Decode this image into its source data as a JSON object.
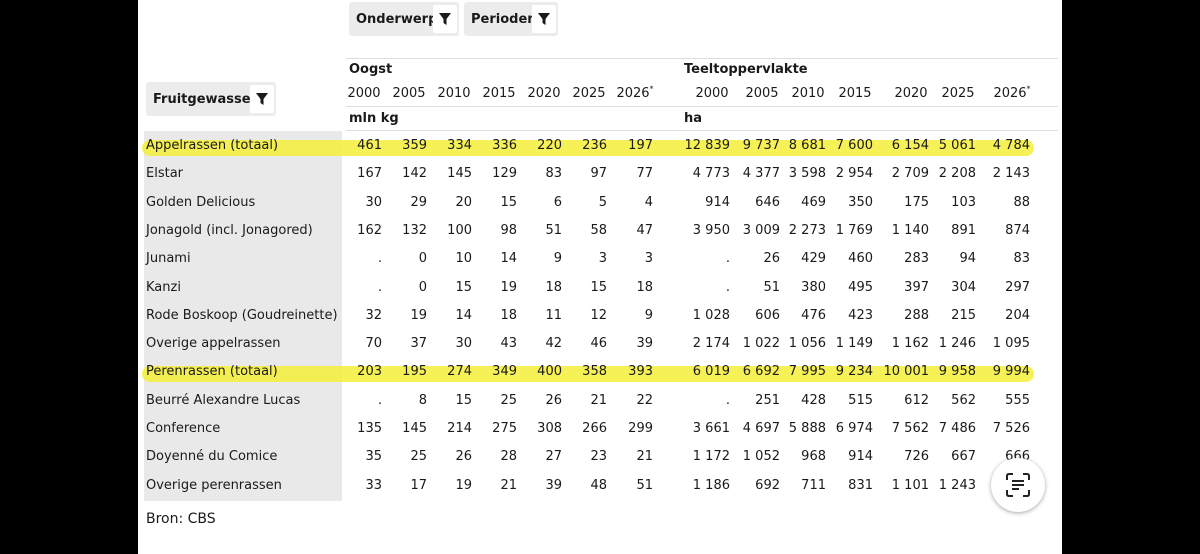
{
  "filters": {
    "onderwerp": "Onderwerp",
    "perioden": "Perioden",
    "fruitgewassen": "Fruitgewassen"
  },
  "groups": {
    "oogst": {
      "title": "Oogst",
      "unit": "mln kg"
    },
    "teelt": {
      "title": "Teeltoppervlakte",
      "unit": "ha"
    }
  },
  "years": [
    "2000",
    "2005",
    "2010",
    "2015",
    "2020",
    "2025",
    "2026"
  ],
  "year_mark": "*",
  "rows": [
    {
      "label": "Appelrassen (totaal)",
      "highlight": true,
      "oogst": [
        "461",
        "359",
        "334",
        "336",
        "220",
        "236",
        "197"
      ],
      "teelt": [
        "12 839",
        "9 737",
        "8 681",
        "7 600",
        "6 154",
        "5 061",
        "4 784"
      ]
    },
    {
      "label": "Elstar",
      "highlight": false,
      "oogst": [
        "167",
        "142",
        "145",
        "129",
        "83",
        "97",
        "77"
      ],
      "teelt": [
        "4 773",
        "4 377",
        "3 598",
        "2 954",
        "2 709",
        "2 208",
        "2 143"
      ]
    },
    {
      "label": "Golden Delicious",
      "highlight": false,
      "oogst": [
        "30",
        "29",
        "20",
        "15",
        "6",
        "5",
        "4"
      ],
      "teelt": [
        "914",
        "646",
        "469",
        "350",
        "175",
        "103",
        "88"
      ]
    },
    {
      "label": "Jonagold (incl. Jonagored)",
      "highlight": false,
      "oogst": [
        "162",
        "132",
        "100",
        "98",
        "51",
        "58",
        "47"
      ],
      "teelt": [
        "3 950",
        "3 009",
        "2 273",
        "1 769",
        "1 140",
        "891",
        "874"
      ]
    },
    {
      "label": "Junami",
      "highlight": false,
      "oogst": [
        ".",
        "0",
        "10",
        "14",
        "9",
        "3",
        "3"
      ],
      "teelt": [
        ".",
        "26",
        "429",
        "460",
        "283",
        "94",
        "83"
      ]
    },
    {
      "label": "Kanzi",
      "highlight": false,
      "oogst": [
        ".",
        "0",
        "15",
        "19",
        "18",
        "15",
        "18"
      ],
      "teelt": [
        ".",
        "51",
        "380",
        "495",
        "397",
        "304",
        "297"
      ]
    },
    {
      "label": "Rode Boskoop (Goudreinette)",
      "highlight": false,
      "oogst": [
        "32",
        "19",
        "14",
        "18",
        "11",
        "12",
        "9"
      ],
      "teelt": [
        "1 028",
        "606",
        "476",
        "423",
        "288",
        "215",
        "204"
      ]
    },
    {
      "label": "Overige appelrassen",
      "highlight": false,
      "oogst": [
        "70",
        "37",
        "30",
        "43",
        "42",
        "46",
        "39"
      ],
      "teelt": [
        "2 174",
        "1 022",
        "1 056",
        "1 149",
        "1 162",
        "1 246",
        "1 095"
      ]
    },
    {
      "label": "Perenrassen (totaal)",
      "highlight": true,
      "oogst": [
        "203",
        "195",
        "274",
        "349",
        "400",
        "358",
        "393"
      ],
      "teelt": [
        "6 019",
        "6 692",
        "7 995",
        "9 234",
        "10 001",
        "9 958",
        "9 994"
      ]
    },
    {
      "label": "Beurré Alexandre Lucas",
      "highlight": false,
      "oogst": [
        ".",
        "8",
        "15",
        "25",
        "26",
        "21",
        "22"
      ],
      "teelt": [
        ".",
        "251",
        "428",
        "515",
        "612",
        "562",
        "555"
      ]
    },
    {
      "label": "Conference",
      "highlight": false,
      "oogst": [
        "135",
        "145",
        "214",
        "275",
        "308",
        "266",
        "299"
      ],
      "teelt": [
        "3 661",
        "4 697",
        "5 888",
        "6 974",
        "7 562",
        "7 486",
        "7 526"
      ]
    },
    {
      "label": "Doyenné du Comice",
      "highlight": false,
      "oogst": [
        "35",
        "25",
        "26",
        "28",
        "27",
        "23",
        "21"
      ],
      "teelt": [
        "1 172",
        "1 052",
        "968",
        "914",
        "726",
        "667",
        "666"
      ]
    },
    {
      "label": "Overige perenrassen",
      "highlight": false,
      "oogst": [
        "33",
        "17",
        "19",
        "21",
        "39",
        "48",
        "51"
      ],
      "teelt": [
        "1 186",
        "692",
        "711",
        "831",
        "1 101",
        "1 243",
        ""
      ]
    }
  ],
  "source": "Bron: CBS",
  "colors": {
    "highlight": "#f5ef3a",
    "label_bg": "#e9e9e9",
    "chip_bg": "#ececec"
  },
  "icons": {
    "filter": "filter-icon",
    "scan": "scan-text-icon"
  }
}
